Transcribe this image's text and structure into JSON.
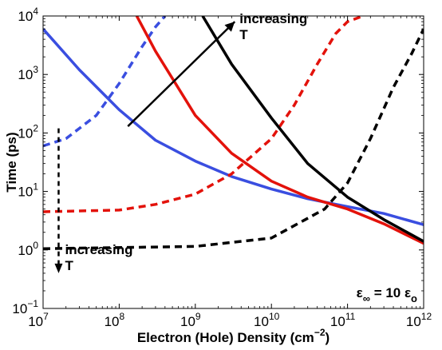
{
  "chart_data": {
    "type": "line",
    "title": "",
    "xlabel": "Electron (Hole) Density (cm",
    "xlabel_sup": "−2",
    "xlabel_close": ")",
    "ylabel": "Time (ps)",
    "x_scale": "log",
    "y_scale": "log",
    "xlim": [
      10000000.0,
      1000000000000.0
    ],
    "ylim": [
      0.1,
      10000
    ],
    "grid": false,
    "legend": "none",
    "x_ticks": [
      {
        "value": 10000000.0,
        "base": "10",
        "exp": "7"
      },
      {
        "value": 100000000.0,
        "base": "10",
        "exp": "8"
      },
      {
        "value": 1000000000.0,
        "base": "10",
        "exp": "9"
      },
      {
        "value": 10000000000.0,
        "base": "10",
        "exp": "10"
      },
      {
        "value": 100000000000.0,
        "base": "10",
        "exp": "11"
      },
      {
        "value": 1000000000000.0,
        "base": "10",
        "exp": "12"
      }
    ],
    "y_ticks": [
      {
        "value": 0.1,
        "base": "10",
        "exp": "−1"
      },
      {
        "value": 1,
        "base": "10",
        "exp": "0"
      },
      {
        "value": 10,
        "base": "10",
        "exp": "1"
      },
      {
        "value": 100,
        "base": "10",
        "exp": "2"
      },
      {
        "value": 1000,
        "base": "10",
        "exp": "3"
      },
      {
        "value": 10000,
        "base": "10",
        "exp": "4"
      }
    ],
    "series": [
      {
        "color": "#3a4ee0",
        "style": "solid",
        "x": [
          10000000.0,
          30000000.0,
          100000000.0,
          300000000.0,
          1000000000.0,
          3000000000.0,
          10000000000.0,
          30000000000.0,
          100000000000.0,
          300000000000.0,
          1000000000000.0
        ],
        "y": [
          6000,
          1200,
          250,
          75,
          33,
          18,
          11,
          7.5,
          5.5,
          4.2,
          2.7
        ]
      },
      {
        "color": "#3a4ee0",
        "style": "dashed",
        "x": [
          10000000.0,
          20000000.0,
          50000000.0,
          100000000.0,
          200000000.0,
          300000000.0,
          400000000.0
        ],
        "y": [
          60,
          80,
          200,
          700,
          3000,
          6500,
          10000
        ]
      },
      {
        "color": "#e3120b",
        "style": "solid",
        "x": [
          170000000.0,
          300000000.0,
          1000000000.0,
          3000000000.0,
          10000000000.0,
          30000000000.0,
          100000000000.0,
          300000000000.0,
          1000000000000.0
        ],
        "y": [
          10000,
          2500,
          200,
          45,
          15,
          8,
          5,
          2.8,
          1.3
        ]
      },
      {
        "color": "#e3120b",
        "style": "dashed",
        "x": [
          10000000.0,
          100000000.0,
          300000000.0,
          1000000000.0,
          3000000000.0,
          10000000000.0,
          20000000000.0,
          40000000000.0,
          70000000000.0,
          100000000000.0,
          160000000000.0
        ],
        "y": [
          4.5,
          4.8,
          6,
          9,
          20,
          80,
          300,
          1500,
          5000,
          8000,
          10000
        ]
      },
      {
        "color": "#000000",
        "style": "solid",
        "x": [
          1250000000.0,
          3000000000.0,
          10000000000.0,
          30000000000.0,
          100000000000.0,
          300000000000.0,
          1000000000000.0
        ],
        "y": [
          10000,
          1500,
          180,
          30,
          8,
          3.3,
          1.4
        ]
      },
      {
        "color": "#000000",
        "style": "dashed",
        "x": [
          10000000.0,
          1000000000.0,
          10000000000.0,
          50000000000.0,
          100000000000.0,
          200000000000.0,
          400000000000.0,
          700000000000.0,
          1000000000000.0
        ],
        "y": [
          1.05,
          1.15,
          1.6,
          5,
          14,
          80,
          600,
          2300,
          6000
        ]
      }
    ],
    "annotations": {
      "top": {
        "line1": "increasing",
        "line2": "T"
      },
      "bottom": {
        "line1": "increasing",
        "line2": "T"
      },
      "eps": {
        "eps": "ε",
        "inf": "∞",
        "mid": " = 10 ε",
        "sub": "o"
      },
      "arrow_solid": {
        "from": [
          130000000.0,
          130
        ],
        "to": [
          3300000000.0,
          8000
        ]
      },
      "arrow_dashed": {
        "x": 16000000.0,
        "from_y": 120,
        "to_y": 0.4
      }
    }
  }
}
